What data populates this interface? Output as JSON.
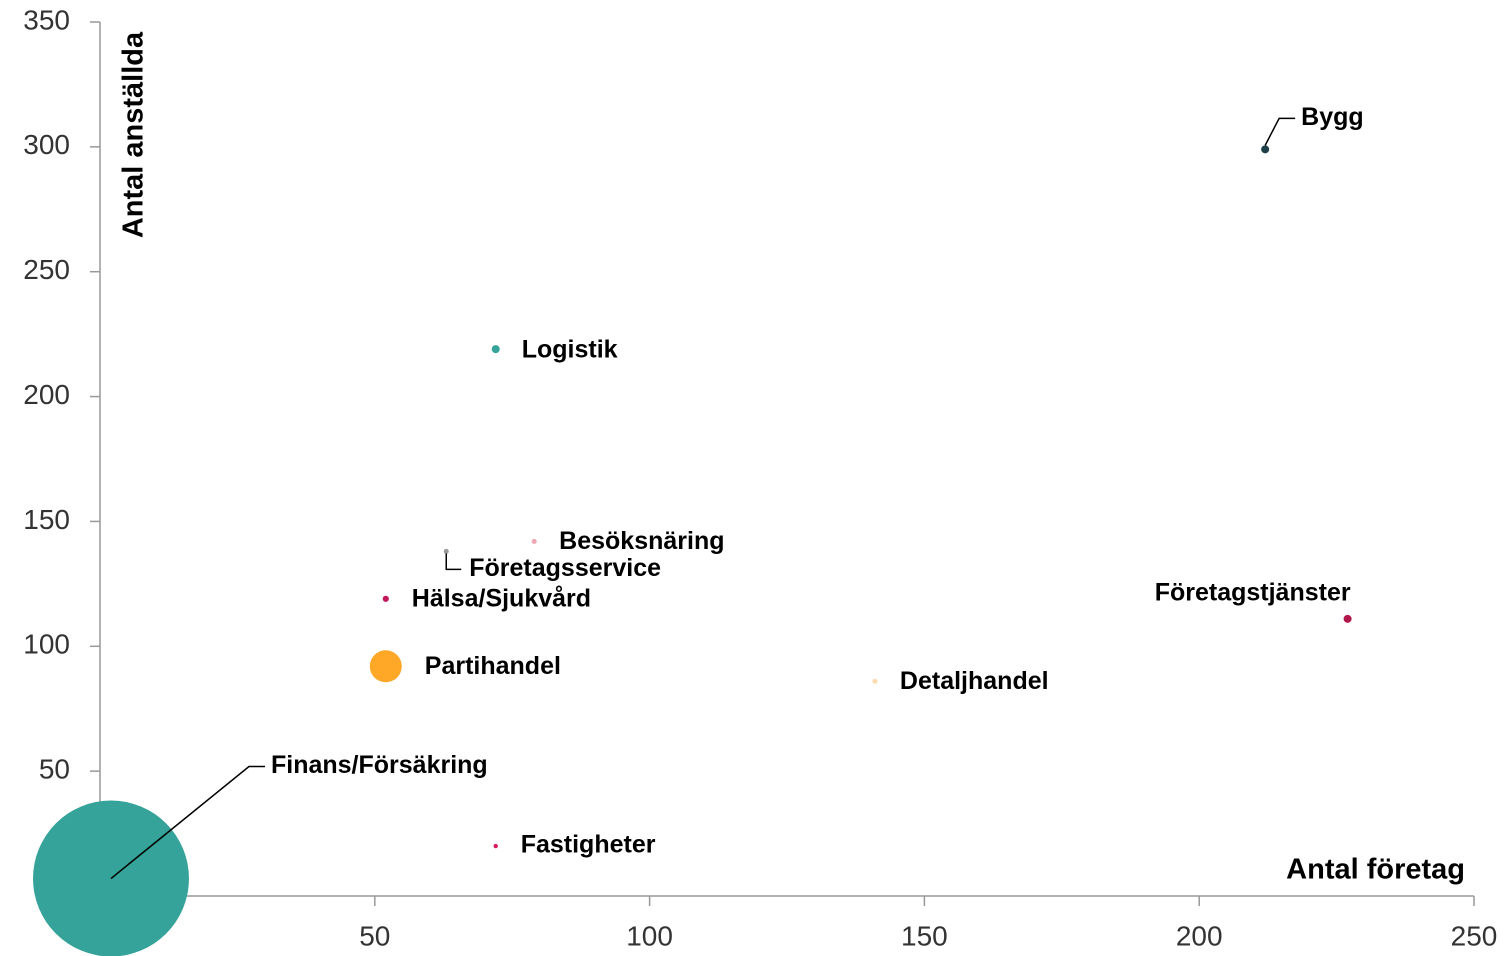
{
  "chart_data": {
    "type": "bubble",
    "x_label": "Antal företag",
    "y_label": "Antal anställda",
    "labels": [
      "Bygg",
      "Logistik",
      "Besöksnäring",
      "Företagsservice",
      "Hälsa/Sjukvård",
      "Partihandel",
      "Detaljhandel",
      "Företagstjänster",
      "Fastigheter",
      "Finans/Försäkring"
    ],
    "x": [
      212,
      72,
      79,
      63,
      52,
      52,
      141,
      227,
      72,
      2
    ],
    "values": [
      299,
      219,
      142,
      138,
      119,
      92,
      86,
      111,
      20,
      7
    ],
    "sizes": [
      1,
      1,
      0.4,
      0.4,
      0.6,
      16,
      0.4,
      1,
      0.3,
      380
    ],
    "colors": [
      "#1d3f47",
      "#35a39a",
      "#f0a8b4",
      "#999999",
      "#c2185b",
      "#ffa726",
      "#ffd9b0",
      "#b0174a",
      "#d81b60",
      "#35a39a"
    ],
    "xlim": [
      0,
      250
    ],
    "xticks": [
      0,
      50,
      100,
      150,
      200,
      250
    ],
    "ylim": [
      0,
      350
    ],
    "yticks": [
      0,
      50,
      100,
      150,
      200,
      250,
      300,
      350
    ],
    "grid": false
  }
}
